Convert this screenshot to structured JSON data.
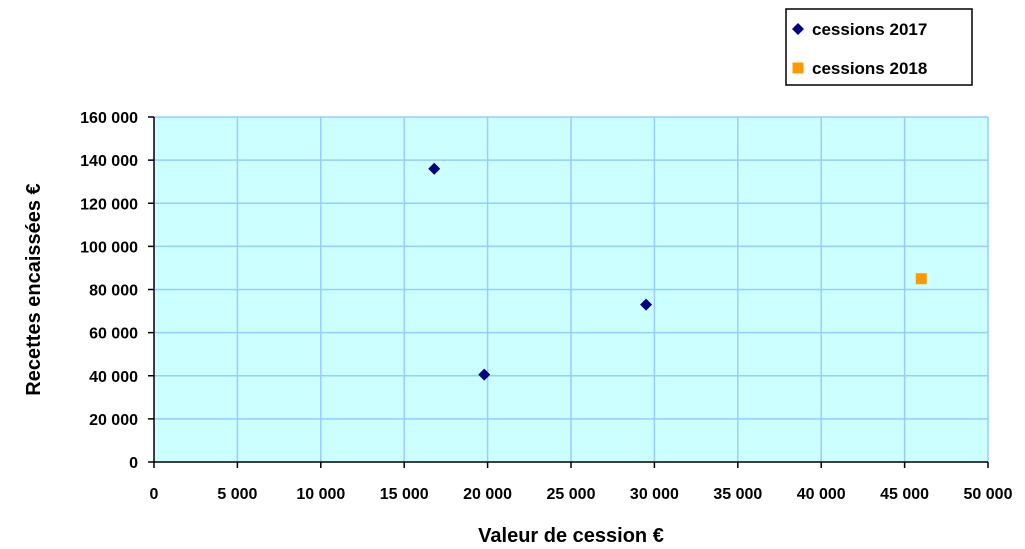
{
  "chart_data": {
    "type": "scatter",
    "xlabel": "Valeur de cession €",
    "ylabel": "Recettes encaissées €",
    "xlim": [
      0,
      50000
    ],
    "ylim": [
      0,
      160000
    ],
    "x_ticks": [
      0,
      5000,
      10000,
      15000,
      20000,
      25000,
      30000,
      35000,
      40000,
      45000,
      50000
    ],
    "y_ticks": [
      0,
      20000,
      40000,
      60000,
      80000,
      100000,
      120000,
      140000,
      160000
    ],
    "x_tick_labels": [
      "0",
      "5 000",
      "10 000",
      "15 000",
      "20 000",
      "25 000",
      "30 000",
      "35 000",
      "40 000",
      "45 000",
      "50 000"
    ],
    "y_tick_labels": [
      "0",
      "20 000",
      "40 000",
      "60 000",
      "80 000",
      "100 000",
      "120 000",
      "140 000",
      "160 000"
    ],
    "grid": true,
    "legend_position": "top-right",
    "series": [
      {
        "name": "cessions 2017",
        "marker": "diamond",
        "color": "#000080",
        "points": [
          {
            "x": 16800,
            "y": 136000
          },
          {
            "x": 19800,
            "y": 40500
          },
          {
            "x": 29500,
            "y": 73000
          }
        ]
      },
      {
        "name": "cessions 2018",
        "marker": "square",
        "color": "#FF9900",
        "points": [
          {
            "x": 46000,
            "y": 85000
          }
        ]
      }
    ],
    "colors": {
      "plot_background": "#CCFFFF",
      "gridline": "#99CCFF",
      "axis": "#000000"
    }
  }
}
